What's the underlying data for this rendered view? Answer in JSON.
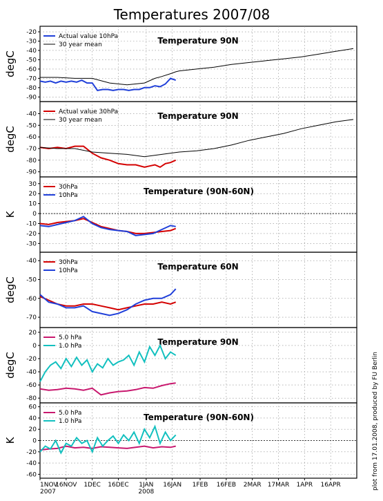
{
  "title": "Temperatures 2007/08",
  "credit": "plot from 17.01.2008, produced by FU Berlin",
  "x_ticks": [
    "1NOV",
    "16NOV",
    "1DEC",
    "16DEC",
    "1JAN",
    "16JAN",
    "1FEB",
    "16FEB",
    "2MAR",
    "17MAR",
    "1APR",
    "16APR"
  ],
  "x_years": [
    "2007",
    "2008"
  ],
  "chart_data": [
    {
      "type": "line",
      "title": "Temperature 90N",
      "ylabel": "degC",
      "ylim": [
        -92,
        -17
      ],
      "yticks": [
        -90,
        -80,
        -70,
        -60,
        -50,
        -40,
        -30,
        -20
      ],
      "grid": true,
      "legend_position": "top-left",
      "series": [
        {
          "name": "Actual value 10hPa",
          "color": "#1f3fd9",
          "x": [
            0,
            3,
            6,
            9,
            12,
            15,
            18,
            21,
            24,
            27,
            30,
            33,
            36,
            39,
            42,
            45,
            48,
            51,
            54,
            57,
            60,
            63,
            66,
            69,
            72,
            75,
            78
          ],
          "values": [
            -73,
            -74,
            -73,
            -75,
            -73,
            -74,
            -73,
            -74,
            -72,
            -75,
            -75,
            -83,
            -82,
            -82,
            -83,
            -82,
            -82,
            -83,
            -82,
            -82,
            -80,
            -80,
            -78,
            -79,
            -76,
            -70,
            -72
          ]
        },
        {
          "name": "30 year mean",
          "color": "#000000",
          "x": [
            0,
            10,
            20,
            30,
            40,
            50,
            60,
            66,
            70,
            75,
            78,
            80,
            90,
            100,
            110,
            120,
            130,
            140,
            150,
            160,
            170,
            180
          ],
          "values": [
            -69,
            -69,
            -70,
            -70,
            -75,
            -77,
            -75,
            -70,
            -68,
            -65,
            -63,
            -62,
            -60,
            -58,
            -55,
            -53,
            -51,
            -49,
            -47,
            -44,
            -41,
            -38
          ]
        }
      ]
    },
    {
      "type": "line",
      "title": "Temperature 90N",
      "ylabel": "degC",
      "ylim": [
        -92,
        -32
      ],
      "yticks": [
        -90,
        -80,
        -70,
        -60,
        -50,
        -40
      ],
      "grid": true,
      "legend_position": "top-left",
      "series": [
        {
          "name": "Actual value 30hPa",
          "color": "#d40000",
          "x": [
            0,
            5,
            10,
            15,
            20,
            25,
            30,
            35,
            40,
            45,
            50,
            55,
            60,
            63,
            66,
            69,
            72,
            75,
            78
          ],
          "values": [
            -69,
            -70,
            -69,
            -70,
            -68,
            -68,
            -74,
            -78,
            -80,
            -83,
            -84,
            -84,
            -86,
            -85,
            -84,
            -86,
            -83,
            -82,
            -80
          ]
        },
        {
          "name": "30 year mean",
          "color": "#000000",
          "x": [
            0,
            10,
            20,
            30,
            40,
            50,
            60,
            70,
            80,
            90,
            100,
            110,
            120,
            130,
            140,
            150,
            160,
            170,
            180
          ],
          "values": [
            -69,
            -70,
            -70,
            -73,
            -74,
            -75,
            -77,
            -75,
            -73,
            -72,
            -70,
            -67,
            -63,
            -60,
            -57,
            -53,
            -50,
            -47,
            -45
          ]
        }
      ]
    },
    {
      "type": "line",
      "title": "Temperature (90N-60N)",
      "ylabel": "K",
      "ylim": [
        -36,
        34
      ],
      "yticks": [
        -30,
        -20,
        -10,
        0,
        10,
        20,
        30
      ],
      "grid": true,
      "legend_position": "top-left",
      "series": [
        {
          "name": "30hPa",
          "color": "#d40000",
          "x": [
            0,
            5,
            10,
            15,
            20,
            25,
            30,
            35,
            40,
            45,
            50,
            55,
            60,
            65,
            70,
            75,
            78
          ],
          "values": [
            -10,
            -11,
            -9,
            -8,
            -7,
            -5,
            -9,
            -13,
            -15,
            -17,
            -18,
            -20,
            -20,
            -19,
            -18,
            -17,
            -15
          ]
        },
        {
          "name": "10hPa",
          "color": "#1f3fd9",
          "x": [
            0,
            5,
            10,
            15,
            20,
            25,
            30,
            35,
            40,
            45,
            50,
            55,
            60,
            65,
            70,
            75,
            78
          ],
          "values": [
            -12,
            -13,
            -11,
            -9,
            -7,
            -3,
            -10,
            -14,
            -16,
            -17,
            -18,
            -22,
            -21,
            -20,
            -16,
            -12,
            -13
          ]
        }
      ]
    },
    {
      "type": "line",
      "title": "Temperature 60N",
      "ylabel": "degC",
      "ylim": [
        -74,
        -37
      ],
      "yticks": [
        -70,
        -60,
        -50,
        -40
      ],
      "grid": true,
      "legend_position": "top-left",
      "series": [
        {
          "name": "30hPa",
          "color": "#d40000",
          "x": [
            0,
            5,
            10,
            15,
            20,
            25,
            30,
            35,
            40,
            45,
            50,
            55,
            60,
            65,
            70,
            75,
            78
          ],
          "values": [
            -59,
            -61,
            -63,
            -64,
            -64,
            -63,
            -63,
            -64,
            -65,
            -66,
            -65,
            -64,
            -63,
            -63,
            -62,
            -63,
            -62
          ]
        },
        {
          "name": "10hPa",
          "color": "#1f3fd9",
          "x": [
            0,
            5,
            10,
            15,
            20,
            25,
            30,
            35,
            40,
            45,
            50,
            55,
            60,
            65,
            70,
            75,
            78
          ],
          "values": [
            -58,
            -62,
            -63,
            -65,
            -65,
            -64,
            -67,
            -68,
            -69,
            -68,
            -66,
            -63,
            -61,
            -60,
            -60,
            -58,
            -55
          ]
        }
      ]
    },
    {
      "type": "line",
      "title": "Temperature 90N",
      "ylabel": "degC",
      "ylim": [
        -83,
        23
      ],
      "yticks": [
        -80,
        -60,
        -40,
        -20,
        0,
        20
      ],
      "grid": true,
      "legend_position": "top-left",
      "series": [
        {
          "name": "5.0 hPa",
          "color": "#c8186e",
          "x": [
            0,
            5,
            10,
            15,
            20,
            25,
            30,
            35,
            40,
            45,
            50,
            55,
            60,
            65,
            70,
            75,
            78
          ],
          "values": [
            -66,
            -68,
            -67,
            -65,
            -66,
            -68,
            -65,
            -75,
            -72,
            -70,
            -69,
            -67,
            -64,
            -65,
            -61,
            -58,
            -57
          ]
        },
        {
          "name": "1.0 hPa",
          "color": "#12c0bf",
          "x": [
            0,
            3,
            6,
            9,
            12,
            15,
            18,
            21,
            24,
            27,
            30,
            33,
            36,
            39,
            42,
            45,
            48,
            51,
            54,
            57,
            60,
            63,
            66,
            69,
            72,
            75,
            78
          ],
          "values": [
            -55,
            -40,
            -30,
            -25,
            -35,
            -20,
            -32,
            -18,
            -30,
            -22,
            -40,
            -28,
            -34,
            -20,
            -30,
            -25,
            -22,
            -15,
            -30,
            -10,
            -25,
            -2,
            -15,
            0,
            -20,
            -10,
            -15
          ]
        }
      ]
    },
    {
      "type": "line",
      "title": "Temperature (90N-60N)",
      "ylabel": "K",
      "ylim": [
        -62,
        62
      ],
      "yticks": [
        -60,
        -40,
        -20,
        0,
        20,
        40,
        60
      ],
      "grid": true,
      "legend_position": "top-left",
      "series": [
        {
          "name": "5.0 hPa",
          "color": "#c8186e",
          "x": [
            0,
            5,
            10,
            15,
            20,
            25,
            30,
            35,
            40,
            45,
            50,
            55,
            60,
            65,
            70,
            75,
            78
          ],
          "values": [
            -17,
            -15,
            -14,
            -10,
            -13,
            -12,
            -14,
            -11,
            -12,
            -13,
            -14,
            -12,
            -10,
            -13,
            -11,
            -12,
            -10
          ]
        },
        {
          "name": "1.0 hPa",
          "color": "#12c0bf",
          "x": [
            0,
            3,
            6,
            9,
            12,
            15,
            18,
            21,
            24,
            27,
            30,
            33,
            36,
            39,
            42,
            45,
            48,
            51,
            54,
            57,
            60,
            63,
            66,
            69,
            72,
            75,
            78
          ],
          "values": [
            -20,
            -10,
            -15,
            0,
            -22,
            -5,
            -10,
            5,
            -5,
            0,
            -20,
            5,
            -10,
            0,
            8,
            -5,
            10,
            0,
            15,
            -5,
            20,
            5,
            25,
            -5,
            15,
            0,
            10
          ]
        }
      ]
    }
  ]
}
